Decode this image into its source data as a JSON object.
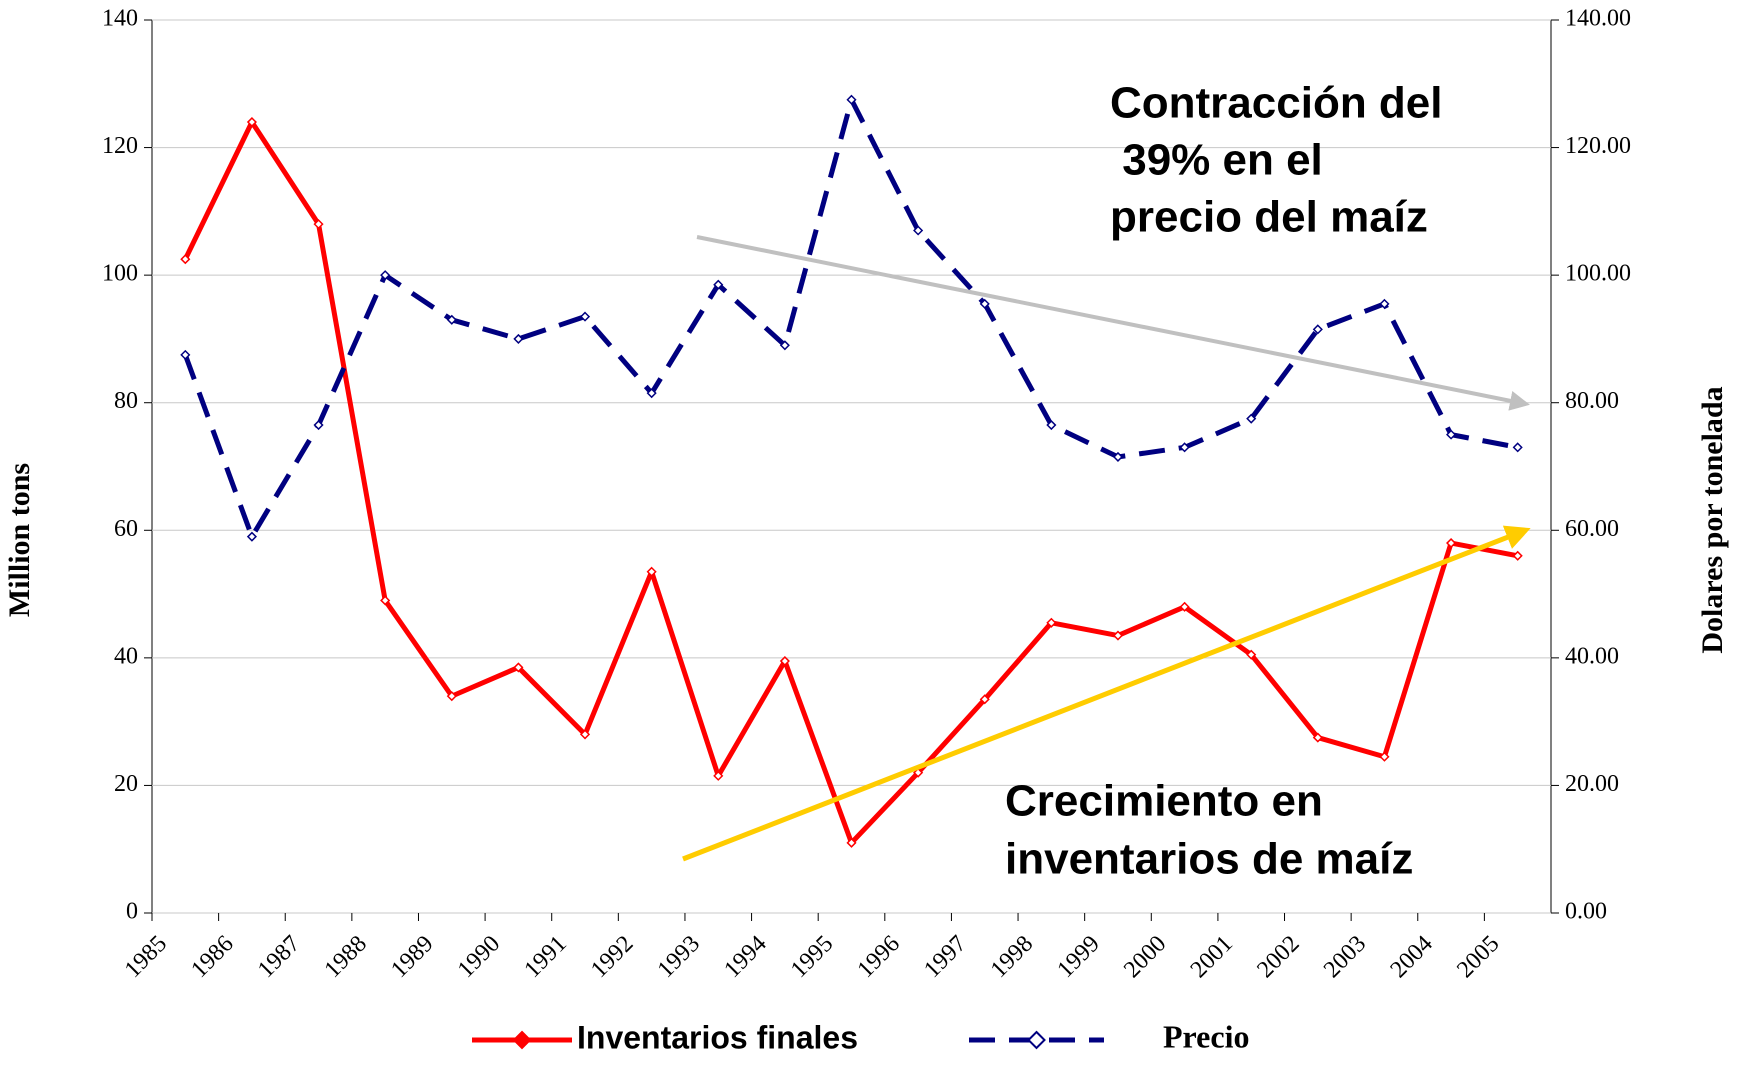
{
  "chart_data": {
    "type": "line",
    "categories": [
      "1985",
      "1986",
      "1987",
      "1988",
      "1989",
      "1990",
      "1991",
      "1992",
      "1993",
      "1994",
      "1995",
      "1996",
      "1997",
      "1998",
      "1999",
      "2000",
      "2001",
      "2002",
      "2003",
      "2004",
      "2005"
    ],
    "series": [
      {
        "name": "Inventarios finales",
        "color": "#ff0000",
        "axis": "y",
        "values": [
          102.5,
          124,
          108,
          49,
          34,
          38.5,
          28,
          53.5,
          21.5,
          39.5,
          11,
          22,
          33.5,
          45.5,
          43.5,
          48,
          40.5,
          27.5,
          24.5,
          58,
          56
        ]
      },
      {
        "name": "Precio",
        "color": "#000080",
        "axis": "y2",
        "values": [
          87.5,
          59,
          76.5,
          100,
          93,
          90,
          93.5,
          81.5,
          98.5,
          89,
          127.5,
          107,
          95.5,
          76.5,
          71.5,
          73,
          77.5,
          91.5,
          95.5,
          75,
          73
        ]
      }
    ],
    "ylabel": "Million tons",
    "y2label": "Dolares por tonelada",
    "ylim": [
      0,
      140
    ],
    "yticks": [
      0,
      20,
      40,
      60,
      80,
      100,
      120,
      140
    ],
    "y2lim": [
      0,
      140
    ],
    "y2ticks": [
      {
        "value": 0,
        "label": "0.00"
      },
      {
        "value": 20,
        "label": "20.00"
      },
      {
        "value": 40,
        "label": "40.00"
      },
      {
        "value": 60,
        "label": "60.00"
      },
      {
        "value": 80,
        "label": "80.00"
      },
      {
        "value": 100,
        "label": "100.00"
      },
      {
        "value": 120,
        "label": "120.00"
      },
      {
        "value": 140,
        "label": "140.00"
      }
    ],
    "grid": true,
    "annotations": [
      {
        "lines": [
          "Contracción del",
          " 39% en el",
          "precio del maíz"
        ],
        "color": "#1a6cff"
      },
      {
        "lines": [
          "Crecimiento en",
          "inventarios de maíz"
        ],
        "color": "#e00000"
      }
    ]
  }
}
